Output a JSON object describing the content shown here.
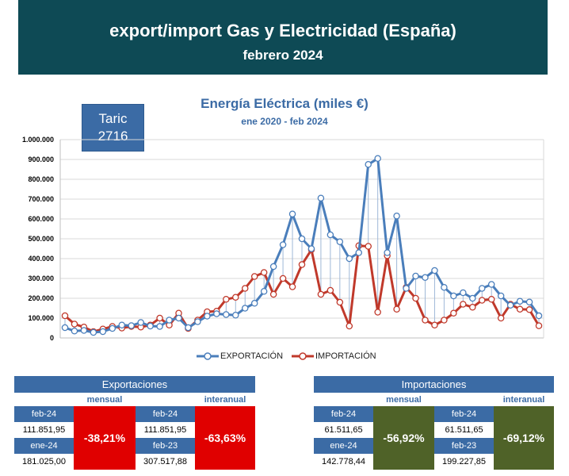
{
  "header": {
    "title": "export/import Gas y Electricidad (España)",
    "subtitle": "febrero 2024"
  },
  "taric": {
    "label": "Taric",
    "code": "2716"
  },
  "chart_data": {
    "type": "line",
    "title": "Energía Eléctrica (miles €)",
    "subtitle": "ene 2020 - feb 2024",
    "ylim": [
      0,
      1000000
    ],
    "yticks": [
      "0",
      "100.000",
      "200.000",
      "300.000",
      "400.000",
      "500.000",
      "600.000",
      "700.000",
      "800.000",
      "900.000",
      "1.000.000"
    ],
    "grid": true,
    "legend_position": "bottom",
    "x_start": "ene 2020",
    "x_end": "feb 2024",
    "series": [
      {
        "name": "EXPORTACIÓN",
        "color": "#4a7ebb",
        "values": [
          52000,
          35000,
          38000,
          28000,
          32000,
          48000,
          65000,
          62000,
          78000,
          60000,
          58000,
          90000,
          100000,
          52000,
          82000,
          110000,
          122000,
          118000,
          115000,
          150000,
          175000,
          235000,
          360000,
          470000,
          625000,
          500000,
          450000,
          705000,
          520000,
          485000,
          400000,
          430000,
          875000,
          905000,
          430000,
          615000,
          250000,
          312000,
          305000,
          340000,
          255000,
          212000,
          228000,
          200000,
          250000,
          270000,
          212000,
          165000,
          185000,
          181025,
          111852
        ]
      },
      {
        "name": "IMPORTACIÓN",
        "color": "#c0392b",
        "values": [
          112000,
          70000,
          55000,
          32000,
          45000,
          58000,
          50000,
          58000,
          55000,
          65000,
          100000,
          65000,
          125000,
          48000,
          90000,
          132000,
          135000,
          195000,
          205000,
          250000,
          310000,
          330000,
          220000,
          300000,
          258000,
          370000,
          445000,
          220000,
          240000,
          180000,
          60000,
          465000,
          462000,
          130000,
          415000,
          145000,
          255000,
          200000,
          90000,
          65000,
          90000,
          125000,
          170000,
          155000,
          190000,
          195000,
          100000,
          170000,
          145000,
          142778,
          61512
        ]
      }
    ]
  },
  "exports": {
    "title": "Exportaciones",
    "monthly_label": "mensual",
    "yearly_label": "interanual",
    "monthly_cur_label": "feb-24",
    "monthly_cur_value": "111.851,95",
    "monthly_prev_label": "ene-24",
    "monthly_prev_value": "181.025,00",
    "monthly_pct": "-38,21%",
    "yearly_cur_label": "feb-24",
    "yearly_cur_value": "111.851,95",
    "yearly_prev_label": "feb-23",
    "yearly_prev_value": "307.517,88",
    "yearly_pct": "-63,63%",
    "pct_color": "#e00000"
  },
  "imports": {
    "title": "Importaciones",
    "monthly_label": "mensual",
    "yearly_label": "interanual",
    "monthly_cur_label": "feb-24",
    "monthly_cur_value": "61.511,65",
    "monthly_prev_label": "ene-24",
    "monthly_prev_value": "142.778,44",
    "monthly_pct": "-56,92%",
    "yearly_cur_label": "feb-24",
    "yearly_cur_value": "61.511,65",
    "yearly_prev_label": "feb-23",
    "yearly_prev_value": "199.227,85",
    "yearly_pct": "-69,12%",
    "pct_color": "#4f6228"
  }
}
